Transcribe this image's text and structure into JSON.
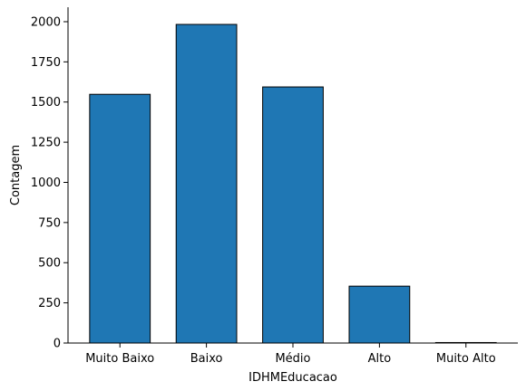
{
  "chart_data": {
    "type": "bar",
    "title": "",
    "xlabel": "IDHMEducacao",
    "ylabel": "Contagem",
    "categories": [
      "Muito Baixo",
      "Baixo",
      "Médio",
      "Alto",
      "Muito Alto"
    ],
    "values": [
      1548,
      1983,
      1594,
      354,
      3
    ],
    "ylim": [
      0,
      2090
    ],
    "yticks": [
      0,
      250,
      500,
      750,
      1000,
      1250,
      1500,
      1750,
      2000
    ],
    "bar_color": "#1f77b4",
    "edge_color": "#000000",
    "grid": false,
    "spines": "left-bottom"
  }
}
